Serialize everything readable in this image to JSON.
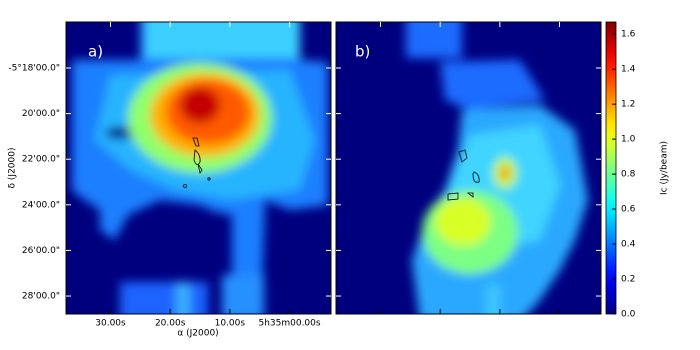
{
  "chart_data": {
    "type": "image",
    "panels": [
      {
        "label": "a)"
      },
      {
        "label": "b)"
      }
    ],
    "xlabel": "α (J2000)",
    "ylabel": "δ (J2000)",
    "xlim": [
      37.46,
      -6.95
    ],
    "xticks": [
      {
        "value": 30,
        "label": "30.00s"
      },
      {
        "value": 20,
        "label": "20.00s"
      },
      {
        "value": 10,
        "label": "10.00s"
      },
      {
        "value": 0,
        "label": "5h35m00.00s"
      }
    ],
    "ylim": [
      -5.4798,
      -5.2664
    ],
    "yticks": [
      {
        "value": -5.3,
        "label": "-5°18'00.0\""
      },
      {
        "value": -5.33333,
        "label": "20'00.0\""
      },
      {
        "value": -5.36667,
        "label": "22'00.0\""
      },
      {
        "value": -5.4,
        "label": "24'00.0\""
      },
      {
        "value": -5.43333,
        "label": "26'00.0\""
      },
      {
        "value": -5.46667,
        "label": "28'00.0\""
      }
    ],
    "colorbar": {
      "label": "Ic (Jy/beam)",
      "colormap": "jet",
      "clim": [
        0,
        1.67
      ],
      "ticks": [
        {
          "value": 0,
          "label": "0.0"
        },
        {
          "value": 0.2,
          "label": "0.2"
        },
        {
          "value": 0.4,
          "label": "0.4"
        },
        {
          "value": 0.6,
          "label": "0.6"
        },
        {
          "value": 0.8,
          "label": "0.8"
        },
        {
          "value": 1.0,
          "label": "1.0"
        },
        {
          "value": 1.2,
          "label": "1.2"
        },
        {
          "value": 1.4,
          "label": "1.4"
        },
        {
          "value": 1.6,
          "label": "1.6"
        }
      ]
    }
  }
}
